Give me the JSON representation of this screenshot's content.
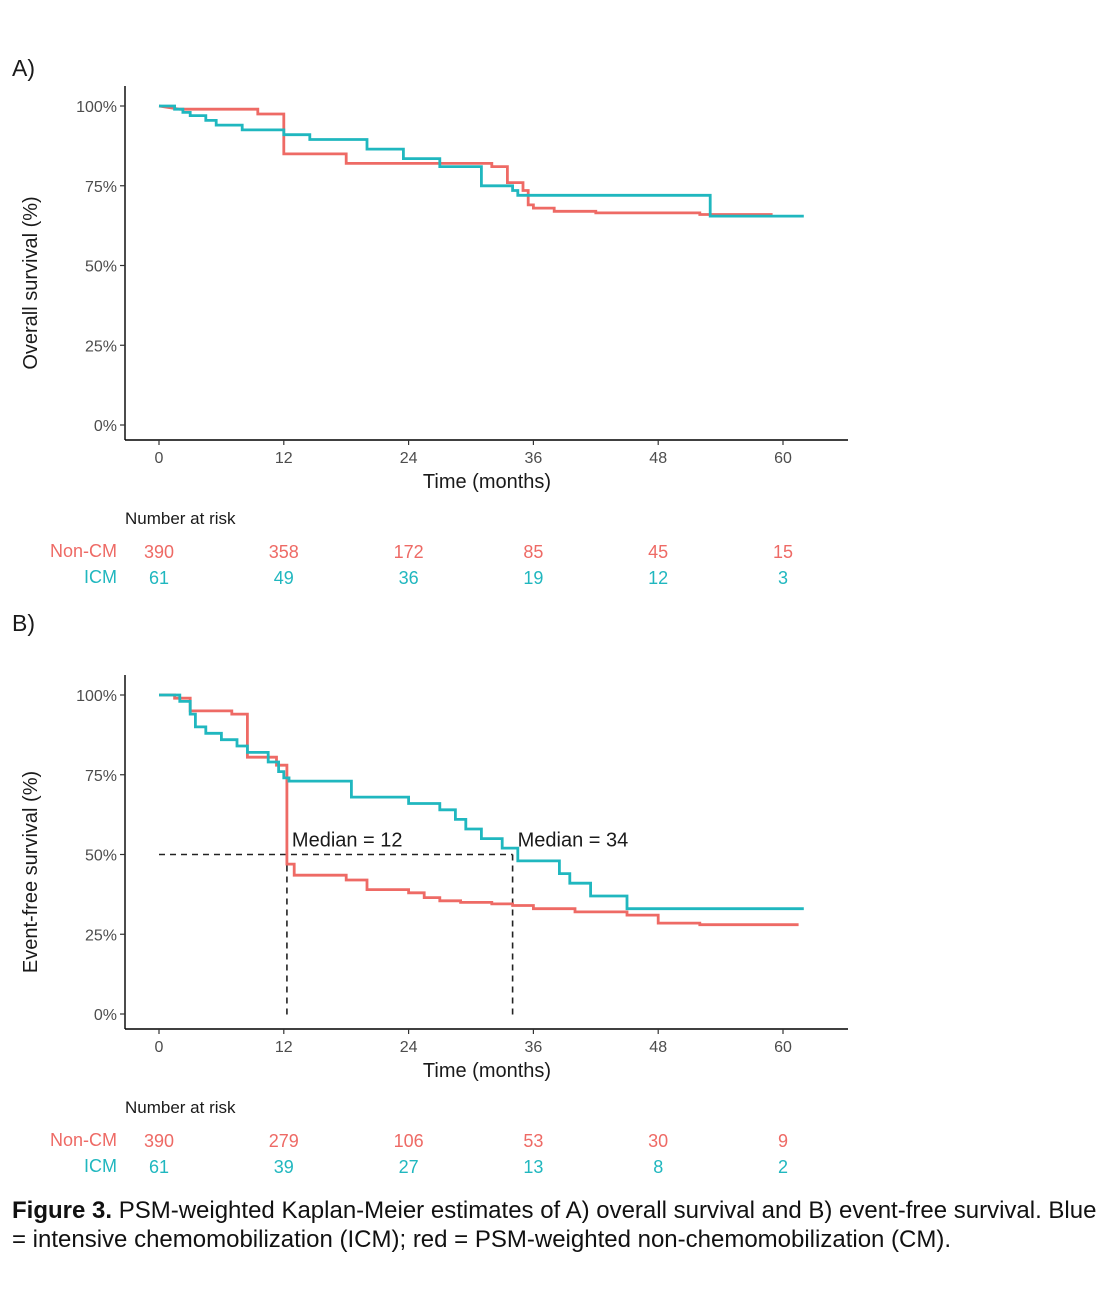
{
  "colors": {
    "noncm": "#EE6A65",
    "icm": "#20B7BF"
  },
  "caption": {
    "label": "Figure 3.",
    "text": " PSM-weighted Kaplan-Meier estimates of A) overall survival and B) event-free survival. Blue = intensive chemomobilization (ICM); red = PSM-weighted non-chemomobilization (CM)."
  },
  "chart_data": [
    {
      "panel": "A)",
      "type": "line",
      "subtype": "step",
      "xlabel": "Time (months)",
      "ylabel": "Overall survival (%)",
      "xlim": [
        -5,
        66
      ],
      "ylim": [
        0,
        100
      ],
      "xticks": [
        0,
        12,
        24,
        36,
        48,
        60
      ],
      "yticks": [
        "0%",
        "25%",
        "50%",
        "75%",
        "100%"
      ],
      "series": [
        {
          "name": "Non-CM",
          "color": "noncm",
          "points": [
            [
              0,
              100
            ],
            [
              2,
              99
            ],
            [
              9.5,
              99
            ],
            [
              9.5,
              97.5
            ],
            [
              12,
              97.5
            ],
            [
              12,
              85
            ],
            [
              18,
              85
            ],
            [
              18,
              82
            ],
            [
              32,
              82
            ],
            [
              32,
              81
            ],
            [
              33.5,
              81
            ],
            [
              33.5,
              76
            ],
            [
              35,
              76
            ],
            [
              35,
              73.5
            ],
            [
              35.5,
              73.5
            ],
            [
              35.5,
              69
            ],
            [
              36,
              69
            ],
            [
              36,
              68
            ],
            [
              38,
              68
            ],
            [
              38,
              67
            ],
            [
              42,
              67
            ],
            [
              42,
              66.5
            ],
            [
              52,
              66.5
            ],
            [
              52,
              66
            ],
            [
              59,
              66
            ]
          ]
        },
        {
          "name": "ICM",
          "color": "icm",
          "points": [
            [
              0,
              100
            ],
            [
              1.5,
              100
            ],
            [
              1.5,
              99
            ],
            [
              2.3,
              99
            ],
            [
              2.3,
              98
            ],
            [
              3,
              98
            ],
            [
              3,
              97
            ],
            [
              4.5,
              97
            ],
            [
              4.5,
              95.5
            ],
            [
              5.5,
              95.5
            ],
            [
              5.5,
              94
            ],
            [
              8,
              94
            ],
            [
              8,
              92.5
            ],
            [
              12,
              92.5
            ],
            [
              12,
              91
            ],
            [
              14.5,
              91
            ],
            [
              14.5,
              89.5
            ],
            [
              20,
              89.5
            ],
            [
              20,
              86.5
            ],
            [
              23.5,
              86.5
            ],
            [
              23.5,
              83.5
            ],
            [
              27,
              83.5
            ],
            [
              27,
              81
            ],
            [
              31,
              81
            ],
            [
              31,
              75
            ],
            [
              34,
              75
            ],
            [
              34,
              73.5
            ],
            [
              34.5,
              73.5
            ],
            [
              34.5,
              72
            ],
            [
              53,
              72
            ],
            [
              53,
              65.5
            ],
            [
              62,
              65.5
            ]
          ]
        }
      ],
      "risk_table": {
        "title": "Number at risk",
        "times": [
          0,
          12,
          24,
          36,
          48,
          60
        ],
        "rows": [
          {
            "name": "Non-CM",
            "color": "noncm",
            "values": [
              "390",
              "358",
              "172",
              "85",
              "45",
              "15"
            ]
          },
          {
            "name": "ICM",
            "color": "icm",
            "values": [
              "61",
              "49",
              "36",
              "19",
              "12",
              "3"
            ]
          }
        ]
      }
    },
    {
      "panel": "B)",
      "type": "line",
      "subtype": "step",
      "xlabel": "Time (months)",
      "ylabel": "Event-free survival (%)",
      "xlim": [
        -5,
        66
      ],
      "ylim": [
        0,
        100
      ],
      "xticks": [
        0,
        12,
        24,
        36,
        48,
        60
      ],
      "yticks": [
        "0%",
        "25%",
        "50%",
        "75%",
        "100%"
      ],
      "series": [
        {
          "name": "Non-CM",
          "color": "noncm",
          "points": [
            [
              0,
              100
            ],
            [
              1.5,
              100
            ],
            [
              1.5,
              99
            ],
            [
              3,
              99
            ],
            [
              3,
              95
            ],
            [
              7,
              95
            ],
            [
              7,
              94
            ],
            [
              8.5,
              94
            ],
            [
              8.5,
              80.5
            ],
            [
              11.3,
              80.5
            ],
            [
              11.3,
              78
            ],
            [
              12.3,
              78
            ],
            [
              12.3,
              47
            ],
            [
              13,
              47
            ],
            [
              13,
              43.5
            ],
            [
              18,
              43.5
            ],
            [
              18,
              42
            ],
            [
              20,
              42
            ],
            [
              20,
              39
            ],
            [
              24,
              39
            ],
            [
              24,
              38
            ],
            [
              25.5,
              38
            ],
            [
              25.5,
              36.5
            ],
            [
              27,
              36.5
            ],
            [
              27,
              35.5
            ],
            [
              29,
              35.5
            ],
            [
              29,
              35
            ],
            [
              32,
              35
            ],
            [
              32,
              34.5
            ],
            [
              34,
              34.5
            ],
            [
              34,
              34
            ],
            [
              36,
              34
            ],
            [
              36,
              33
            ],
            [
              40,
              33
            ],
            [
              40,
              32
            ],
            [
              45,
              32
            ],
            [
              45,
              31
            ],
            [
              48,
              31
            ],
            [
              48,
              28.5
            ],
            [
              52,
              28.5
            ],
            [
              52,
              28
            ],
            [
              61.5,
              28
            ]
          ]
        },
        {
          "name": "ICM",
          "color": "icm",
          "points": [
            [
              0,
              100
            ],
            [
              2,
              100
            ],
            [
              2,
              98
            ],
            [
              3,
              98
            ],
            [
              3,
              94
            ],
            [
              3.5,
              94
            ],
            [
              3.5,
              90
            ],
            [
              4.5,
              90
            ],
            [
              4.5,
              88
            ],
            [
              6,
              88
            ],
            [
              6,
              86
            ],
            [
              7.5,
              86
            ],
            [
              7.5,
              84
            ],
            [
              8.5,
              84
            ],
            [
              8.5,
              82
            ],
            [
              10.5,
              82
            ],
            [
              10.5,
              79
            ],
            [
              11.5,
              79
            ],
            [
              11.5,
              76
            ],
            [
              12,
              76
            ],
            [
              12,
              74
            ],
            [
              12.5,
              74
            ],
            [
              12.5,
              73
            ],
            [
              18.5,
              73
            ],
            [
              18.5,
              68
            ],
            [
              24,
              68
            ],
            [
              24,
              66
            ],
            [
              27,
              66
            ],
            [
              27,
              64
            ],
            [
              28.5,
              64
            ],
            [
              28.5,
              61
            ],
            [
              29.5,
              61
            ],
            [
              29.5,
              58
            ],
            [
              31,
              58
            ],
            [
              31,
              55
            ],
            [
              33,
              55
            ],
            [
              33,
              52
            ],
            [
              34.5,
              52
            ],
            [
              34.5,
              48
            ],
            [
              38.5,
              48
            ],
            [
              38.5,
              44
            ],
            [
              39.5,
              44
            ],
            [
              39.5,
              41
            ],
            [
              41.5,
              41
            ],
            [
              41.5,
              37
            ],
            [
              45,
              37
            ],
            [
              45,
              33
            ],
            [
              62,
              33
            ]
          ]
        }
      ],
      "annotations": [
        {
          "text": "Median = 12",
          "x": 12.3,
          "y": 50
        },
        {
          "text": "Median = 34",
          "x": 34,
          "y": 50
        }
      ],
      "risk_table": {
        "title": "Number at risk",
        "times": [
          0,
          12,
          24,
          36,
          48,
          60
        ],
        "rows": [
          {
            "name": "Non-CM",
            "color": "noncm",
            "values": [
              "390",
              "279",
              "106",
              "53",
              "30",
              "9"
            ]
          },
          {
            "name": "ICM",
            "color": "icm",
            "values": [
              "61",
              "39",
              "27",
              "13",
              "8",
              "2"
            ]
          }
        ]
      }
    }
  ]
}
